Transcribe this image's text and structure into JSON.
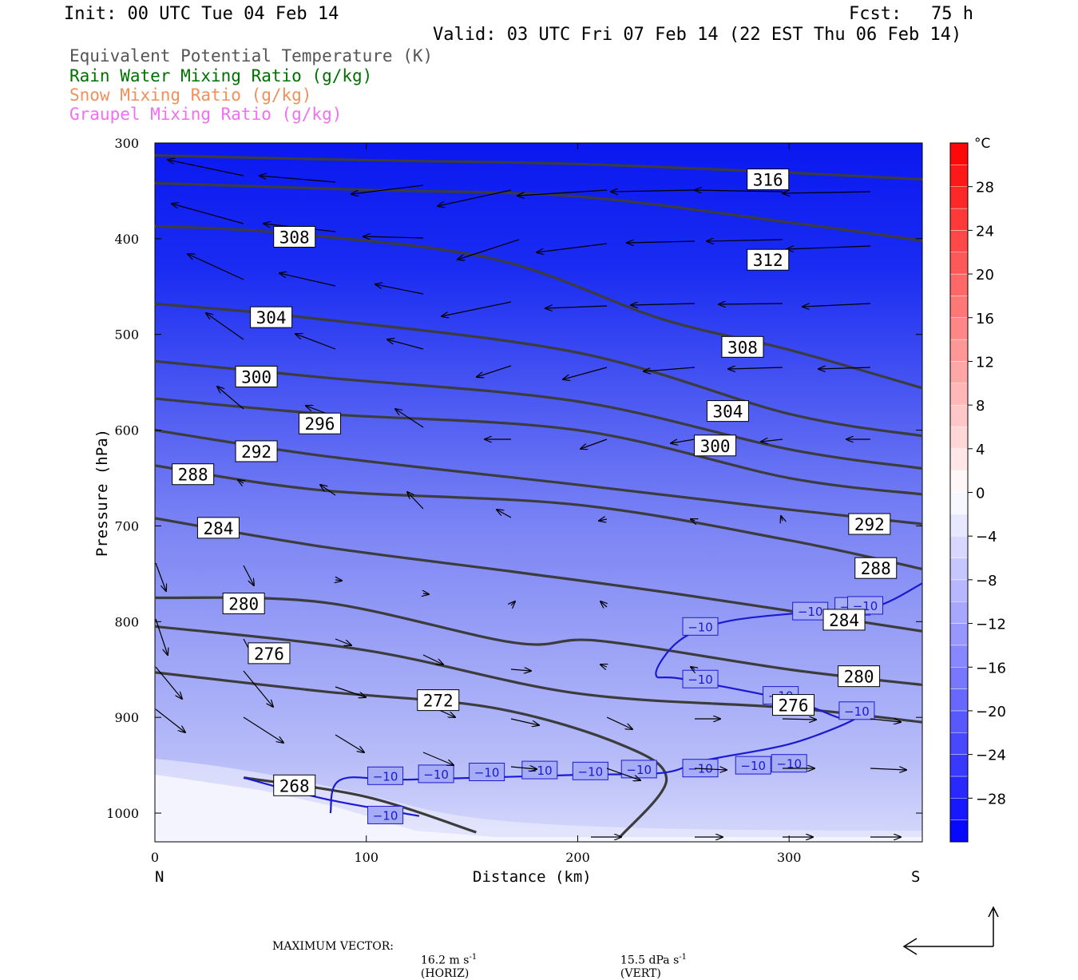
{
  "header": {
    "init": "Init: 00 UTC Tue 04 Feb 14",
    "fcst_label": "Fcst:",
    "fcst_value": "75 h",
    "valid": "Valid: 03 UTC Fri 07 Feb 14 (22 EST Thu 06 Feb 14)"
  },
  "fields": [
    {
      "label": "Equivalent Potential Temperature (K)",
      "color": "#555555"
    },
    {
      "label": "Rain Water Mixing Ratio (g/kg)",
      "color": "#007000"
    },
    {
      "label": "Snow Mixing Ratio (g/kg)",
      "color": "#f0905a"
    },
    {
      "label": "Graupel Mixing Ratio (g/kg)",
      "color": "#f070f0"
    }
  ],
  "footer": {
    "max_vector": "MAXIMUM VECTOR:",
    "horiz_value": "16.2 m s",
    "horiz_exp": "-1",
    "horiz_label": "(HORIZ)",
    "vert_value": "15.5 dPa s",
    "vert_exp": "-1",
    "vert_label": "(VERT)"
  },
  "chart_data": {
    "type": "cross-section",
    "xlabel": "Distance (km)",
    "ylabel": "Pressure (hPa)",
    "xlim": [
      0,
      363
    ],
    "ylim": [
      300,
      1030
    ],
    "x_ticks": [
      0,
      100,
      200,
      300
    ],
    "y_ticks": [
      300,
      400,
      500,
      600,
      700,
      800,
      900,
      1000
    ],
    "x_end_labels": {
      "left": "N",
      "right": "S"
    },
    "colorbar": {
      "unit": "°C",
      "labels": [
        "28",
        "24",
        "20",
        "16",
        "12",
        "8",
        "4",
        "0",
        "−4",
        "−8",
        "−12",
        "−16",
        "−20",
        "−24",
        "−28"
      ],
      "label_values": [
        28,
        24,
        20,
        16,
        12,
        8,
        4,
        0,
        -4,
        -8,
        -12,
        -16,
        -20,
        -24,
        -28
      ],
      "levels": [
        -32,
        -30,
        -28,
        -26,
        -24,
        -22,
        -20,
        -18,
        -16,
        -14,
        -12,
        -10,
        -8,
        -6,
        -4,
        -2,
        0,
        2,
        4,
        6,
        8,
        10,
        12,
        14,
        16,
        18,
        20,
        22,
        24,
        26,
        28,
        30,
        32
      ],
      "cold_color": "#0000ff",
      "neutral_color": "#ffffff",
      "warm_color": "#ff0000"
    },
    "theta_e_contours": [
      {
        "label": "316",
        "points": [
          [
            0,
            313
          ],
          [
            100,
            318
          ],
          [
            200,
            322
          ],
          [
            300,
            331
          ],
          [
            363,
            338
          ]
        ],
        "label_at": [
          290,
          338
        ]
      },
      {
        "label": "312",
        "points": [
          [
            0,
            342
          ],
          [
            100,
            349
          ],
          [
            200,
            356
          ],
          [
            300,
            383
          ],
          [
            363,
            402
          ]
        ],
        "label_at": [
          290,
          422
        ]
      },
      {
        "label": "308",
        "points": [
          [
            0,
            387
          ],
          [
            60,
            394
          ],
          [
            160,
            421
          ],
          [
            240,
            484
          ],
          [
            300,
            516
          ],
          [
            363,
            556
          ]
        ],
        "label_at": [
          66,
          398
        ]
      },
      {
        "label": "308",
        "points": [],
        "label_at": [
          278,
          513
        ]
      },
      {
        "label": "304",
        "points": [
          [
            0,
            468
          ],
          [
            70,
            482
          ],
          [
            200,
            519
          ],
          [
            300,
            583
          ],
          [
            363,
            606
          ]
        ],
        "label_at": [
          55,
          482
        ]
      },
      {
        "label": "304",
        "points": [],
        "label_at": [
          271,
          580
        ]
      },
      {
        "label": "300",
        "points": [
          [
            0,
            528
          ],
          [
            80,
            545
          ],
          [
            200,
            570
          ],
          [
            300,
            620
          ],
          [
            363,
            640
          ]
        ],
        "label_at": [
          48,
          544
        ]
      },
      {
        "label": "300",
        "points": [],
        "label_at": [
          265,
          616
        ]
      },
      {
        "label": "296",
        "points": [
          [
            0,
            567
          ],
          [
            80,
            583
          ],
          [
            200,
            600
          ],
          [
            300,
            650
          ],
          [
            363,
            667
          ]
        ],
        "label_at": [
          78,
          593
        ]
      },
      {
        "label": "292",
        "points": [
          [
            0,
            600
          ],
          [
            80,
            627
          ],
          [
            200,
            657
          ],
          [
            300,
            683
          ],
          [
            363,
            698
          ]
        ],
        "label_at": [
          48,
          622
        ]
      },
      {
        "label": "292",
        "points": [],
        "label_at": [
          338,
          698
        ]
      },
      {
        "label": "288",
        "points": [
          [
            0,
            637
          ],
          [
            80,
            663
          ],
          [
            200,
            678
          ],
          [
            300,
            715
          ],
          [
            363,
            745
          ]
        ],
        "label_at": [
          18,
          646
        ]
      },
      {
        "label": "288",
        "points": [],
        "label_at": [
          341,
          744
        ]
      },
      {
        "label": "284",
        "points": [
          [
            0,
            692
          ],
          [
            80,
            722
          ],
          [
            170,
            748
          ],
          [
            250,
            772
          ],
          [
            363,
            810
          ]
        ],
        "label_at": [
          30,
          702
        ]
      },
      {
        "label": "284",
        "points": [],
        "label_at": [
          326,
          798
        ]
      },
      {
        "label": "280",
        "points": [
          [
            0,
            775
          ],
          [
            80,
            780
          ],
          [
            170,
            822
          ],
          [
            210,
            820
          ],
          [
            300,
            850
          ],
          [
            363,
            866
          ]
        ],
        "label_at": [
          42,
          781
        ]
      },
      {
        "label": "280",
        "points": [],
        "label_at": [
          333,
          857
        ]
      },
      {
        "label": "276",
        "points": [
          [
            0,
            805
          ],
          [
            100,
            830
          ],
          [
            200,
            875
          ],
          [
            300,
            890
          ],
          [
            363,
            905
          ]
        ],
        "label_at": [
          54,
          833
        ]
      },
      {
        "label": "276",
        "points": [],
        "label_at": [
          302,
          887
        ]
      },
      {
        "label": "272",
        "points": [
          [
            0,
            853
          ],
          [
            80,
            873
          ],
          [
            160,
            890
          ],
          [
            220,
            928
          ],
          [
            242,
            965
          ],
          [
            220,
            1025
          ]
        ],
        "label_at": [
          134,
          882
        ]
      },
      {
        "label": "268",
        "points": [
          [
            42,
            963
          ],
          [
            100,
            983
          ],
          [
            152,
            1020
          ]
        ],
        "label_at": [
          66,
          971
        ]
      }
    ],
    "temperature_contour_labels": [
      "−10",
      "−10",
      "−10",
      "−10",
      "−10",
      "−10",
      "−10",
      "−10",
      "−10",
      "−10",
      "−10",
      "−10",
      "−10",
      "−10",
      "−10",
      "−10",
      "−10"
    ]
  }
}
